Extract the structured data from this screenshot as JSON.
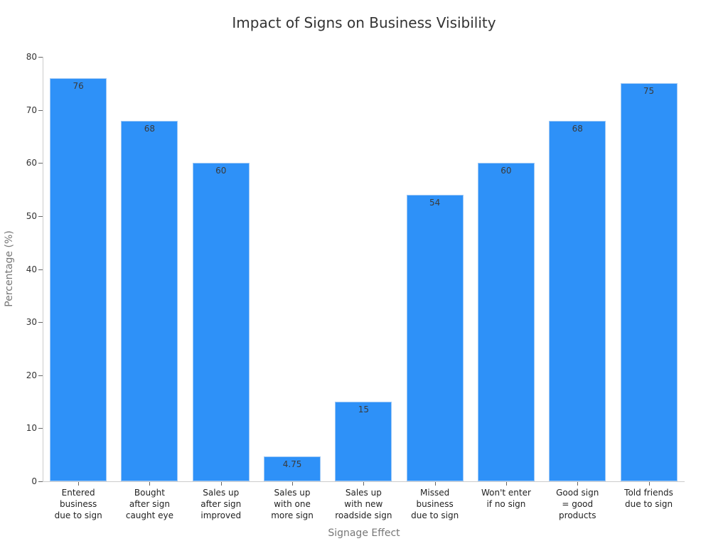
{
  "chart_data": {
    "type": "bar",
    "title": "Impact of Signs on Business Visibility",
    "xlabel": "Signage Effect",
    "ylabel": "Percentage (%)",
    "ylim": [
      0,
      80
    ],
    "yticks": [
      0,
      10,
      20,
      30,
      40,
      50,
      60,
      70,
      80
    ],
    "grid": false,
    "legend": null,
    "bar_color": "#2e91f8",
    "categories": [
      "Entered\nbusiness\ndue to sign",
      "Bought\nafter sign\ncaught eye",
      "Sales up\nafter sign\nimproved",
      "Sales up\nwith one\nmore sign",
      "Sales up\nwith new\nroadside sign",
      "Missed\nbusiness\ndue to sign",
      "Won't enter\nif no sign",
      "Good sign\n= good\nproducts",
      "Told friends\ndue to sign"
    ],
    "values": [
      76,
      68,
      60,
      4.75,
      15,
      54,
      60,
      68,
      75
    ],
    "data_labels": [
      "76",
      "68",
      "60",
      "4.75",
      "15",
      "54",
      "60",
      "68",
      "75"
    ]
  }
}
